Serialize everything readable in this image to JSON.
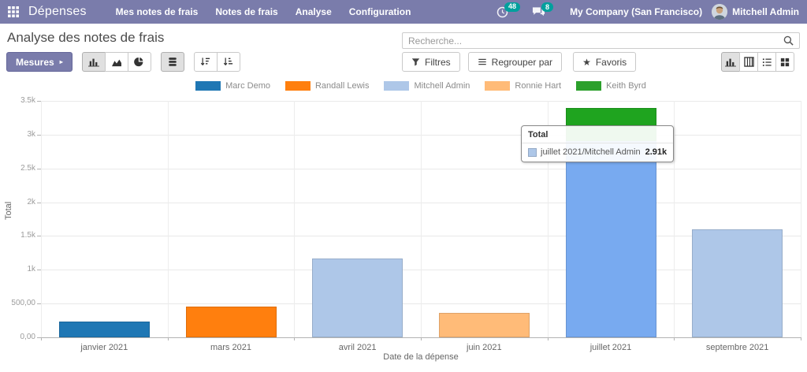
{
  "nav": {
    "brand": "Dépenses",
    "items": [
      "Mes notes de frais",
      "Notes de frais",
      "Analyse",
      "Configuration"
    ],
    "activity_count": "48",
    "message_count": "8",
    "company": "My Company (San Francisco)",
    "user": "Mitchell Admin",
    "bar_color": "#7a7cab",
    "badge_color": "#00a09d"
  },
  "header": {
    "title": "Analyse des notes de frais"
  },
  "search": {
    "placeholder": "Recherche..."
  },
  "toolbar": {
    "measures_label": "Mesures",
    "filters_label": "Filtres",
    "groupby_label": "Regrouper par",
    "favorites_label": "Favoris",
    "chart_type_buttons": [
      {
        "name": "bar-chart",
        "active": true
      },
      {
        "name": "line-chart",
        "active": false
      },
      {
        "name": "pie-chart",
        "active": false
      }
    ],
    "stacked_button": {
      "name": "stacked",
      "active": true
    },
    "sort_buttons": [
      {
        "name": "sort-desc",
        "active": false
      },
      {
        "name": "sort-asc",
        "active": false
      }
    ],
    "view_switcher": [
      {
        "name": "graph",
        "active": true
      },
      {
        "name": "pivot",
        "active": false
      },
      {
        "name": "list",
        "active": false
      },
      {
        "name": "kanban",
        "active": false
      }
    ]
  },
  "icons": {
    "caret_right": "▸",
    "star": "★"
  },
  "chart_data": {
    "type": "bar",
    "stacked": true,
    "legend_position": "top",
    "grid": true,
    "xlabel": "Date de la dépense",
    "ylabel": "Total",
    "ylim": [
      0,
      3500
    ],
    "yticks": [
      {
        "label": "0,00",
        "value": 0
      },
      {
        "label": "500,00",
        "value": 500
      },
      {
        "label": "1k",
        "value": 1000
      },
      {
        "label": "1.5k",
        "value": 1500
      },
      {
        "label": "2k",
        "value": 2000
      },
      {
        "label": "2.5k",
        "value": 2500
      },
      {
        "label": "3k",
        "value": 3000
      },
      {
        "label": "3.5k",
        "value": 3500
      }
    ],
    "categories": [
      "janvier 2021",
      "mars 2021",
      "avril 2021",
      "juin 2021",
      "juillet 2021",
      "septembre 2021"
    ],
    "series": [
      {
        "name": "Marc Demo",
        "color": "#1f77b4",
        "values": [
          230,
          0,
          0,
          0,
          0,
          0
        ]
      },
      {
        "name": "Randall Lewis",
        "color": "#ff7f0e",
        "values": [
          0,
          450,
          0,
          0,
          0,
          0
        ]
      },
      {
        "name": "Mitchell Admin",
        "color": "#aec7e8",
        "values": [
          0,
          0,
          1170,
          0,
          2910,
          1600
        ]
      },
      {
        "name": "Ronnie Hart",
        "color": "#ffbb78",
        "values": [
          0,
          0,
          0,
          360,
          0,
          0
        ]
      },
      {
        "name": "Keith Byrd",
        "color": "#2ca02c",
        "values": [
          0,
          0,
          0,
          0,
          490,
          0
        ]
      }
    ],
    "highlights": [
      {
        "category": "juillet 2021",
        "series": "Mitchell Admin",
        "color": "#78aaf0"
      },
      {
        "category": "juillet 2021",
        "series": "Keith Byrd",
        "color": "#1fa41f"
      }
    ],
    "tooltip": {
      "header": "Total",
      "rows": [
        {
          "swatch": "#aec7e8",
          "label": "juillet 2021/Mitchell Admin",
          "value": "2.91k"
        }
      ]
    }
  }
}
